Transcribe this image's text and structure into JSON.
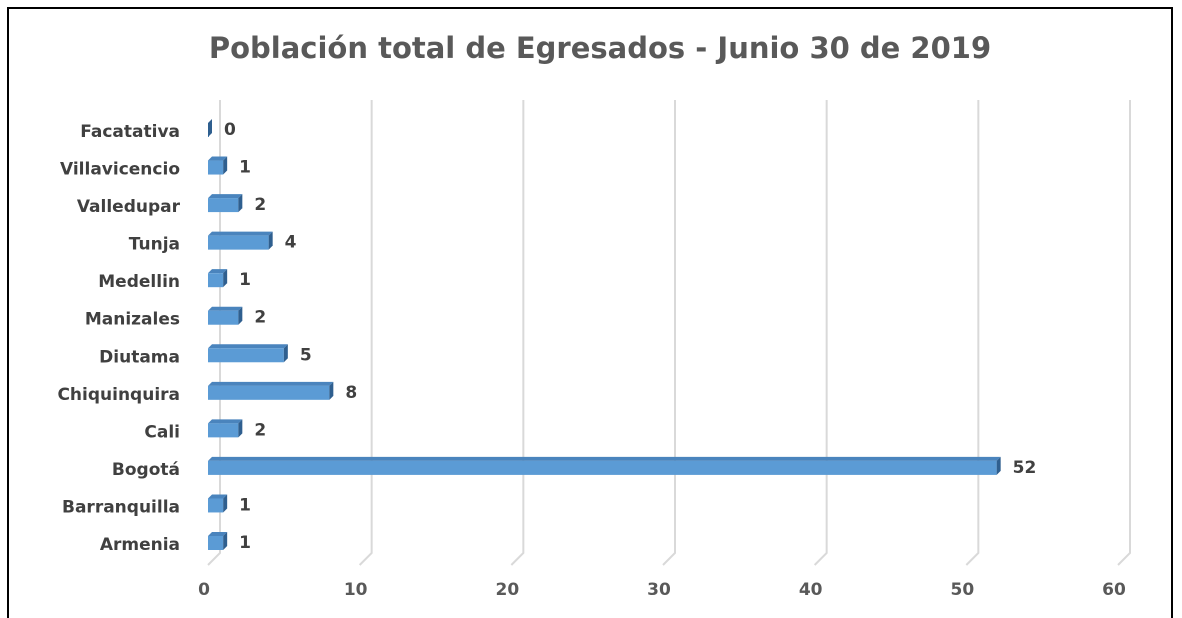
{
  "chart_data": {
    "type": "bar",
    "orientation": "horizontal",
    "title": "Población total de Egresados - Junio 30 de 2019",
    "categories": [
      "Armenia",
      "Barranquilla",
      "Bogotá",
      "Cali",
      "Chiquinquira",
      "Diutama",
      "Manizales",
      "Medellin",
      "Tunja",
      "Valledupar",
      "Villavicencio",
      "Facatativa"
    ],
    "values": [
      1,
      1,
      52,
      2,
      8,
      5,
      2,
      1,
      4,
      2,
      1,
      0
    ],
    "color": "#5b9bd5",
    "xlim": [
      0,
      60
    ],
    "xticks": [
      0,
      10,
      20,
      30,
      40,
      50,
      60
    ],
    "grid": true
  }
}
